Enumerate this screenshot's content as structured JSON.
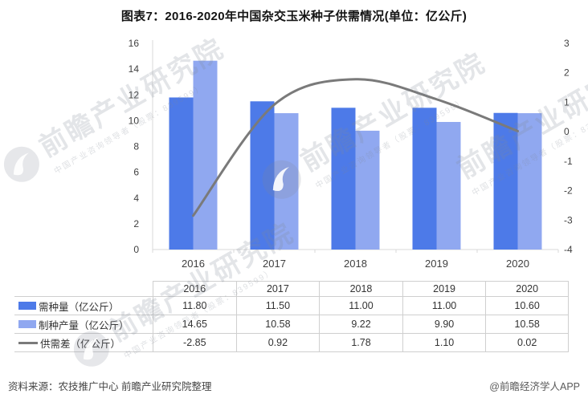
{
  "title": "图表7：2016-2020年中国杂交玉米种子供需情况(单位：亿公斤)",
  "chart_data": {
    "type": "bar+line",
    "categories": [
      "2016",
      "2017",
      "2018",
      "2019",
      "2020"
    ],
    "series": [
      {
        "name": "需种量（亿公斤）",
        "type": "bar",
        "axis": "left",
        "color": "#4d7ae8",
        "values": [
          11.8,
          11.5,
          11.0,
          11.0,
          10.6
        ]
      },
      {
        "name": "制种产量（亿公斤）",
        "type": "bar",
        "axis": "left",
        "color": "#90a8f0",
        "values": [
          14.65,
          10.58,
          9.22,
          9.9,
          10.58
        ]
      },
      {
        "name": "供需差（亿公斤）",
        "type": "line",
        "axis": "right",
        "color": "#7a7a7a",
        "values": [
          -2.85,
          0.92,
          1.78,
          1.1,
          0.02
        ]
      }
    ],
    "left_axis": {
      "min": 0,
      "max": 16,
      "step": 2,
      "ticks": [
        0,
        2,
        4,
        6,
        8,
        10,
        12,
        14,
        16
      ]
    },
    "right_axis": {
      "min": -4,
      "max": 3,
      "step": 1,
      "ticks": [
        3,
        2,
        1,
        0,
        -1,
        -2,
        -3,
        -4
      ]
    },
    "grid": false,
    "legend_position": "data-table-left",
    "value_format": "2dp"
  },
  "table": {
    "corner_label": ""
  },
  "footer": {
    "source": "资料来源：农技推广中心 前瞻产业研究院整理",
    "credit": "@前瞻经济学人APP"
  },
  "watermark": {
    "text": "前瞻产业研究院",
    "subtext": "中国产业咨询领导者（股票：839599）"
  },
  "colors": {
    "bar_demand": "#4d7ae8",
    "bar_production": "#90a8f0",
    "line_gap": "#7a7a7a",
    "axis_line": "#d9d9d9",
    "table_border": "#cfcfcf",
    "title_text": "#141414",
    "axis_text": "#3f3f3f"
  }
}
